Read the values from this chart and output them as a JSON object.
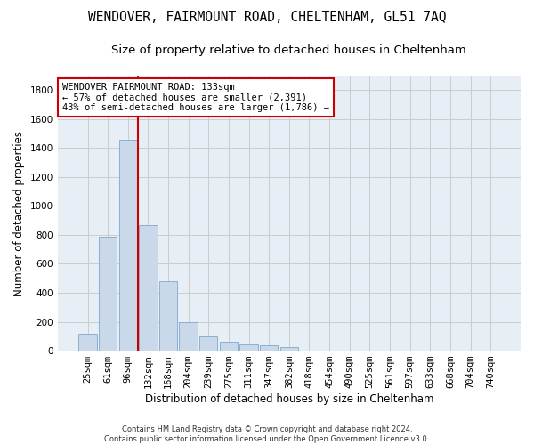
{
  "title": "WENDOVER, FAIRMOUNT ROAD, CHELTENHAM, GL51 7AQ",
  "subtitle": "Size of property relative to detached houses in Cheltenham",
  "xlabel": "Distribution of detached houses by size in Cheltenham",
  "ylabel": "Number of detached properties",
  "footnote1": "Contains HM Land Registry data © Crown copyright and database right 2024.",
  "footnote2": "Contains public sector information licensed under the Open Government Licence v3.0.",
  "categories": [
    "25sqm",
    "61sqm",
    "96sqm",
    "132sqm",
    "168sqm",
    "204sqm",
    "239sqm",
    "275sqm",
    "311sqm",
    "347sqm",
    "382sqm",
    "418sqm",
    "454sqm",
    "490sqm",
    "525sqm",
    "561sqm",
    "597sqm",
    "633sqm",
    "668sqm",
    "704sqm",
    "740sqm"
  ],
  "values": [
    120,
    790,
    1455,
    865,
    478,
    200,
    100,
    65,
    45,
    35,
    25,
    0,
    0,
    0,
    0,
    0,
    0,
    0,
    0,
    0,
    0
  ],
  "bar_color": "#c9d9ea",
  "bar_edge_color": "#7fa8cc",
  "vline_x_index": 2,
  "vline_color": "#cc0000",
  "annotation_box_color": "#cc0000",
  "annotation_title": "WENDOVER FAIRMOUNT ROAD: 133sqm",
  "annotation_line1": "← 57% of detached houses are smaller (2,391)",
  "annotation_line2": "43% of semi-detached houses are larger (1,786) →",
  "ylim": [
    0,
    1900
  ],
  "yticks": [
    0,
    200,
    400,
    600,
    800,
    1000,
    1200,
    1400,
    1600,
    1800
  ],
  "background_color": "#ffffff",
  "grid_color": "#cccccc",
  "ax_facecolor": "#e8eef6",
  "title_fontsize": 10.5,
  "subtitle_fontsize": 9.5,
  "axis_label_fontsize": 8.5,
  "tick_fontsize": 7.5,
  "annotation_fontsize": 7.5
}
